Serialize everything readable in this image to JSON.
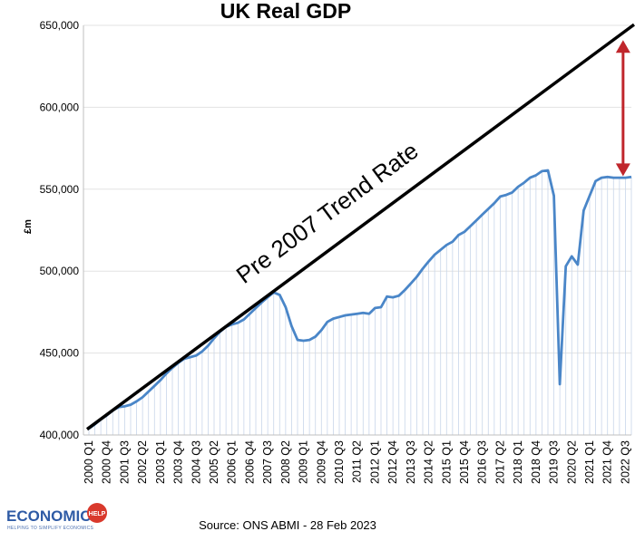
{
  "chart_data": {
    "type": "line",
    "title": "UK Real GDP",
    "ylabel": "£m",
    "xlabel": "",
    "ylim": [
      400000,
      650000
    ],
    "yticks": [
      400000,
      450000,
      500000,
      550000,
      600000,
      650000
    ],
    "ytick_labels": [
      "400,000",
      "450,000",
      "500,000",
      "550,000",
      "600,000",
      "650,000"
    ],
    "grid": true,
    "x": [
      "2000 Q1",
      "2000 Q2",
      "2000 Q3",
      "2000 Q4",
      "2001 Q1",
      "2001 Q2",
      "2001 Q3",
      "2001 Q4",
      "2002 Q1",
      "2002 Q2",
      "2002 Q3",
      "2002 Q4",
      "2003 Q1",
      "2003 Q2",
      "2003 Q3",
      "2003 Q4",
      "2004 Q1",
      "2004 Q2",
      "2004 Q3",
      "2004 Q4",
      "2005 Q1",
      "2005 Q2",
      "2005 Q3",
      "2005 Q4",
      "2006 Q1",
      "2006 Q2",
      "2006 Q3",
      "2006 Q4",
      "2007 Q1",
      "2007 Q2",
      "2007 Q3",
      "2007 Q4",
      "2008 Q1",
      "2008 Q2",
      "2008 Q3",
      "2008 Q4",
      "2009 Q1",
      "2009 Q2",
      "2009 Q3",
      "2009 Q4",
      "2010 Q1",
      "2010 Q2",
      "2010 Q3",
      "2010 Q4",
      "2011 Q1",
      "2011 Q2",
      "2011 Q3",
      "2011 Q4",
      "2012 Q1",
      "2012 Q2",
      "2012 Q3",
      "2012 Q4",
      "2013 Q1",
      "2013 Q2",
      "2013 Q3",
      "2013 Q4",
      "2014 Q1",
      "2014 Q2",
      "2014 Q3",
      "2014 Q4",
      "2015 Q1",
      "2015 Q2",
      "2015 Q3",
      "2015 Q4",
      "2016 Q1",
      "2016 Q2",
      "2016 Q3",
      "2016 Q4",
      "2017 Q1",
      "2017 Q2",
      "2017 Q3",
      "2017 Q4",
      "2018 Q1",
      "2018 Q2",
      "2018 Q3",
      "2018 Q4",
      "2019 Q1",
      "2019 Q2",
      "2019 Q3",
      "2019 Q4",
      "2020 Q1",
      "2020 Q2",
      "2020 Q3",
      "2020 Q4",
      "2021 Q1",
      "2021 Q2",
      "2021 Q3",
      "2021 Q4",
      "2022 Q1",
      "2022 Q2",
      "2022 Q3",
      "2022 Q4"
    ],
    "xtick_labels": [
      "2000 Q1",
      "2000 Q4",
      "2001 Q3",
      "2002 Q2",
      "2003 Q1",
      "2003 Q4",
      "2004 Q3",
      "2005 Q2",
      "2006 Q1",
      "2006 Q4",
      "2007 Q3",
      "2008 Q2",
      "2009 Q1",
      "2009 Q4",
      "2010 Q3",
      "2011 Q2",
      "2012 Q1",
      "2012 Q4",
      "2013 Q3",
      "2014 Q2",
      "2015 Q1",
      "2015 Q4",
      "2016 Q3",
      "2017 Q2",
      "2018 Q1",
      "2018 Q4",
      "2019 Q3",
      "2020 Q2",
      "2021 Q1",
      "2021 Q4",
      "2022 Q3"
    ],
    "series": [
      {
        "name": "",
        "color": "#4a86c8",
        "values": [
          404000,
          406500,
          409500,
          412000,
          415000,
          417000,
          417500,
          418500,
          420500,
          423000,
          426500,
          430000,
          433500,
          437500,
          441000,
          444000,
          446500,
          447500,
          448500,
          451000,
          454500,
          459000,
          463000,
          466000,
          467500,
          468500,
          470500,
          474000,
          477500,
          481000,
          484000,
          487000,
          485500,
          478000,
          466500,
          458000,
          457500,
          458000,
          460000,
          464000,
          469000,
          471000,
          472000,
          473000,
          473500,
          474000,
          474500,
          474000,
          477500,
          478000,
          484500,
          484000,
          485000,
          488500,
          492500,
          496500,
          501500,
          506000,
          510000,
          513000,
          516000,
          518000,
          522000,
          524000,
          527500,
          531000,
          534500,
          538000,
          541500,
          545500,
          546500,
          548000,
          551500,
          554000,
          557000,
          558500,
          561000,
          561500,
          546000,
          431000,
          503000,
          509000,
          504000,
          537000,
          546000,
          555000,
          557000,
          557500,
          557000,
          557000,
          557000,
          557500
        ]
      }
    ],
    "trend_line": {
      "label": "Pre 2007 Trend Rate",
      "color": "#000000",
      "start": {
        "x": "2000 Q1",
        "y": 403500
      },
      "end": {
        "x": "2022 Q4",
        "y": 650500
      }
    },
    "gap_arrow": {
      "color": "#c0262c",
      "x": "2022 Q2",
      "from": 641000,
      "to": 558000
    },
    "source": "Source: ONS ABMI - 28 Feb 2023"
  },
  "logo": {
    "main_text": "ECONOMICS",
    "badge_text": "HELP",
    "tagline": "HELPING TO SIMPLIFY ECONOMICS"
  }
}
